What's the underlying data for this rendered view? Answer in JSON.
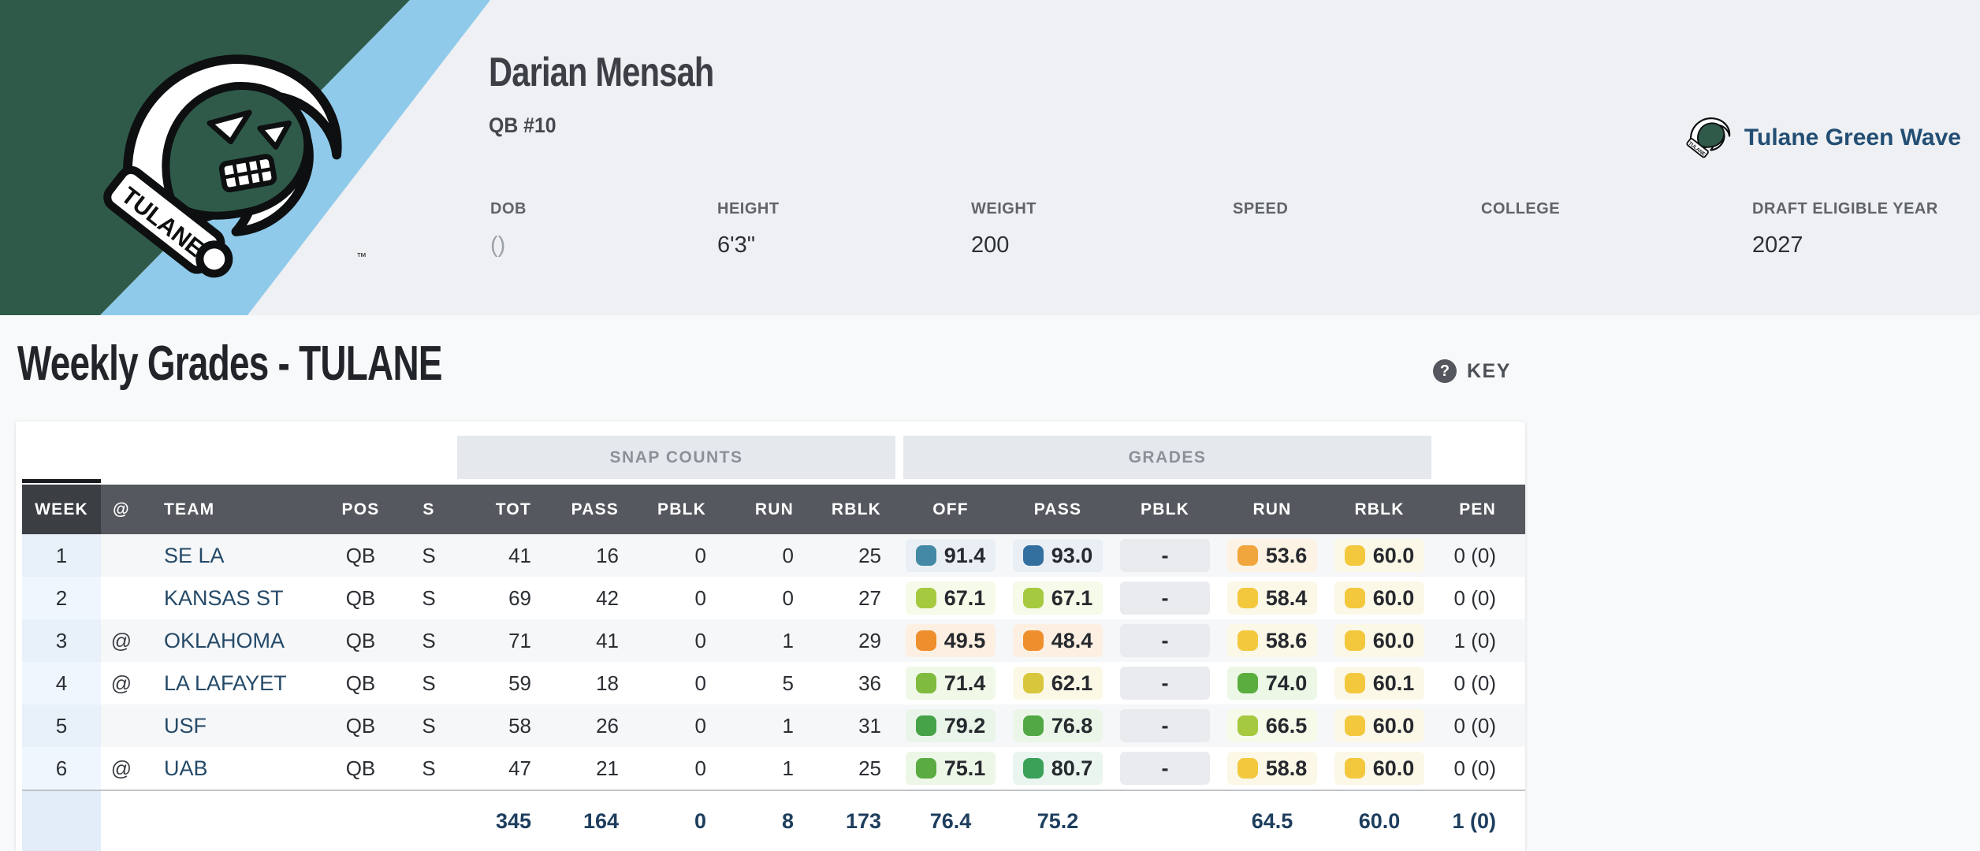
{
  "banner": {
    "player_name": "Darian Mensah",
    "position_number": "QB #10",
    "team_link_label": "Tulane Green Wave",
    "bio": [
      {
        "label": "DOB",
        "value": "()"
      },
      {
        "label": "HEIGHT",
        "value": "6'3\""
      },
      {
        "label": "WEIGHT",
        "value": "200"
      },
      {
        "label": "SPEED",
        "value": ""
      },
      {
        "label": "COLLEGE",
        "value": ""
      },
      {
        "label": "DRAFT ELIGIBLE YEAR",
        "value": "2027"
      }
    ]
  },
  "section": {
    "title": "Weekly Grades - TULANE",
    "key_label": "KEY",
    "key_icon": "?"
  },
  "table": {
    "group_headers": [
      {
        "label": "SNAP COUNTS"
      },
      {
        "label": "GRADES"
      }
    ],
    "columns": [
      "WEEK",
      "@",
      "TEAM",
      "POS",
      "S",
      "TOT",
      "PASS",
      "PBLK",
      "RUN",
      "RBLK",
      "OFF",
      "PASS",
      "PBLK",
      "RUN",
      "RBLK",
      "PEN"
    ],
    "rows": [
      {
        "week": "1",
        "away": "",
        "team": "SE LA",
        "pos": "QB",
        "s": "S",
        "tot": "41",
        "pass": "16",
        "pblk": "0",
        "run": "0",
        "rblk": "25",
        "grades": {
          "off": {
            "v": "91.4",
            "c": "#4489a6",
            "bg": "#e9eff5"
          },
          "pass": {
            "v": "93.0",
            "c": "#33709f",
            "bg": "#e9eff5"
          },
          "pblk": {
            "v": "-",
            "c": null,
            "bg": "#e9ebef"
          },
          "run": {
            "v": "53.6",
            "c": "#f0a63c",
            "bg": "#fcf3e4"
          },
          "rblk": {
            "v": "60.0",
            "c": "#f3c83d",
            "bg": "#fcf8e7"
          }
        },
        "pen": "0 (0)"
      },
      {
        "week": "2",
        "away": "",
        "team": "KANSAS ST",
        "pos": "QB",
        "s": "S",
        "tot": "69",
        "pass": "42",
        "pblk": "0",
        "run": "0",
        "rblk": "27",
        "grades": {
          "off": {
            "v": "67.1",
            "c": "#a5c93f",
            "bg": "#f5fae9"
          },
          "pass": {
            "v": "67.1",
            "c": "#a5c93f",
            "bg": "#f5fae9"
          },
          "pblk": {
            "v": "-",
            "c": null,
            "bg": "#e9ebef"
          },
          "run": {
            "v": "58.4",
            "c": "#f3c83d",
            "bg": "#fcf8e7"
          },
          "rblk": {
            "v": "60.0",
            "c": "#f3c83d",
            "bg": "#fcf8e7"
          }
        },
        "pen": "0 (0)"
      },
      {
        "week": "3",
        "away": "@",
        "team": "OKLAHOMA",
        "pos": "QB",
        "s": "S",
        "tot": "71",
        "pass": "41",
        "pblk": "0",
        "run": "1",
        "rblk": "29",
        "grades": {
          "off": {
            "v": "49.5",
            "c": "#ef8e2d",
            "bg": "#fdf0e2"
          },
          "pass": {
            "v": "48.4",
            "c": "#ef8e2d",
            "bg": "#fdf0e2"
          },
          "pblk": {
            "v": "-",
            "c": null,
            "bg": "#e9ebef"
          },
          "run": {
            "v": "58.6",
            "c": "#f3c83d",
            "bg": "#fcf8e7"
          },
          "rblk": {
            "v": "60.0",
            "c": "#f3c83d",
            "bg": "#fcf8e7"
          }
        },
        "pen": "1 (0)"
      },
      {
        "week": "4",
        "away": "@",
        "team": "LA LAFAYET",
        "pos": "QB",
        "s": "S",
        "tot": "59",
        "pass": "18",
        "pblk": "0",
        "run": "5",
        "rblk": "36",
        "grades": {
          "off": {
            "v": "71.4",
            "c": "#7fbb3e",
            "bg": "#f0f8e7"
          },
          "pass": {
            "v": "62.1",
            "c": "#d8c63c",
            "bg": "#fbf9e6"
          },
          "pblk": {
            "v": "-",
            "c": null,
            "bg": "#e9ebef"
          },
          "run": {
            "v": "74.0",
            "c": "#5aad3f",
            "bg": "#edf7e6"
          },
          "rblk": {
            "v": "60.1",
            "c": "#f3c83d",
            "bg": "#fcf8e7"
          }
        },
        "pen": "0 (0)"
      },
      {
        "week": "5",
        "away": "",
        "team": "USF",
        "pos": "QB",
        "s": "S",
        "tot": "58",
        "pass": "26",
        "pblk": "0",
        "run": "1",
        "rblk": "31",
        "grades": {
          "off": {
            "v": "79.2",
            "c": "#46a348",
            "bg": "#eaf5ea"
          },
          "pass": {
            "v": "76.8",
            "c": "#51a844",
            "bg": "#ebf6e8"
          },
          "pblk": {
            "v": "-",
            "c": null,
            "bg": "#e9ebef"
          },
          "run": {
            "v": "66.5",
            "c": "#a5c93f",
            "bg": "#f5fae9"
          },
          "rblk": {
            "v": "60.0",
            "c": "#f3c83d",
            "bg": "#fcf8e7"
          }
        },
        "pen": "0 (0)"
      },
      {
        "week": "6",
        "away": "@",
        "team": "UAB",
        "pos": "QB",
        "s": "S",
        "tot": "47",
        "pass": "21",
        "pblk": "0",
        "run": "1",
        "rblk": "25",
        "grades": {
          "off": {
            "v": "75.1",
            "c": "#5aab41",
            "bg": "#edf7e7"
          },
          "pass": {
            "v": "80.7",
            "c": "#3ba159",
            "bg": "#e9f5ee"
          },
          "pblk": {
            "v": "-",
            "c": null,
            "bg": "#e9ebef"
          },
          "run": {
            "v": "58.8",
            "c": "#f3c83d",
            "bg": "#fcf8e7"
          },
          "rblk": {
            "v": "60.0",
            "c": "#f3c83d",
            "bg": "#fcf8e7"
          }
        },
        "pen": "0 (0)"
      }
    ],
    "totals": {
      "tot": "345",
      "pass": "164",
      "pblk": "0",
      "run": "8",
      "rblk": "173",
      "off": "76.4",
      "gpass": "75.2",
      "gpblk": "",
      "grun": "64.5",
      "grblk": "60.0",
      "pen": "1 (0)"
    }
  },
  "colors": {
    "banner_green": "#2f5a49",
    "banner_stripe_blue": "#8fcaea",
    "team_link": "#234e74",
    "header_dark": "#55585e",
    "week_header_dark": "#3b3e43"
  }
}
